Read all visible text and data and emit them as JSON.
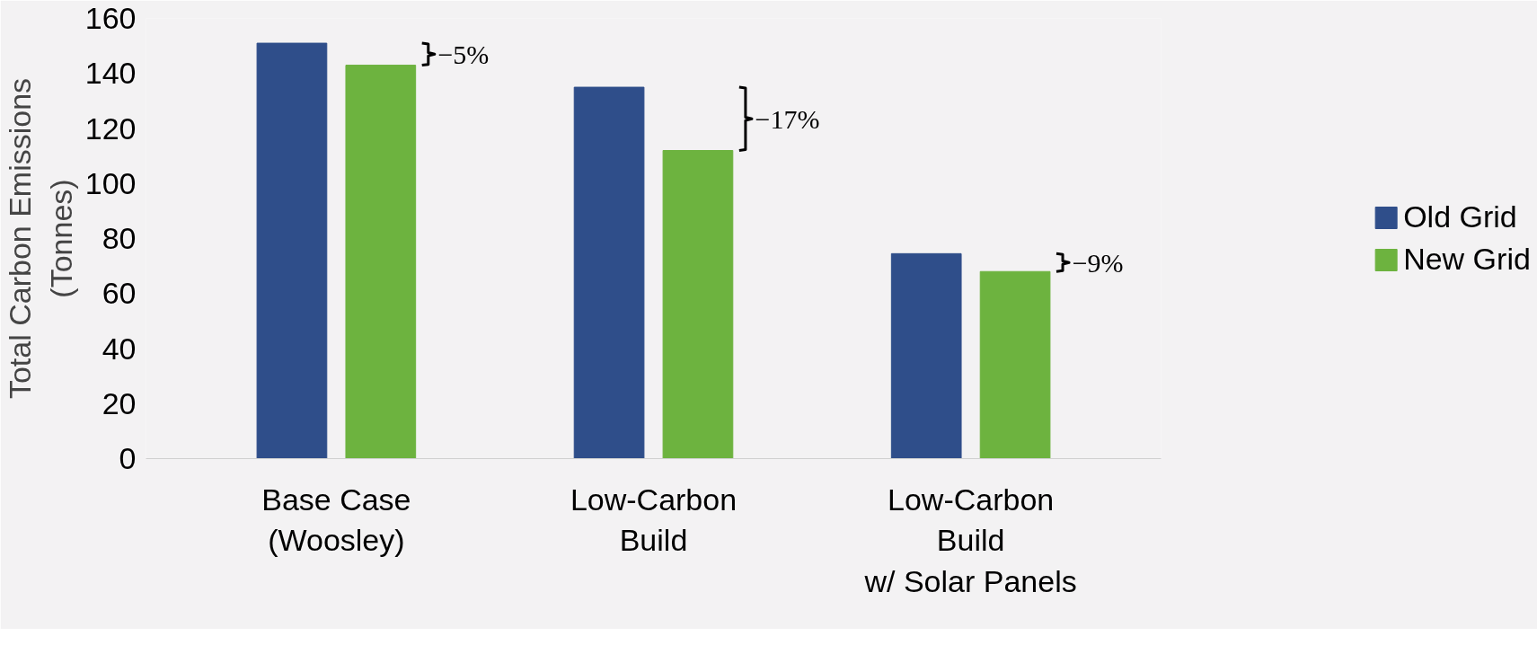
{
  "chart_data": {
    "type": "bar",
    "ylabel": "Total Carbon Emissions\n(Tonnes)",
    "categories": [
      "Base Case\n(Woosley)",
      "Low-Carbon\nBuild",
      "Low-Carbon\nBuild\nw/ Solar Panels"
    ],
    "series": [
      {
        "name": "Old Grid",
        "color": "#2f4e8a",
        "values": [
          151,
          135,
          74.5
        ]
      },
      {
        "name": "New Grid",
        "color": "#6db33f",
        "values": [
          143,
          112,
          68
        ]
      }
    ],
    "ylim": [
      0,
      160
    ],
    "yticks": [
      0,
      20,
      40,
      60,
      80,
      100,
      120,
      140,
      160
    ],
    "grid": false,
    "legend": "right",
    "annotations": [
      "−5%",
      "−17%",
      "−9%"
    ]
  }
}
